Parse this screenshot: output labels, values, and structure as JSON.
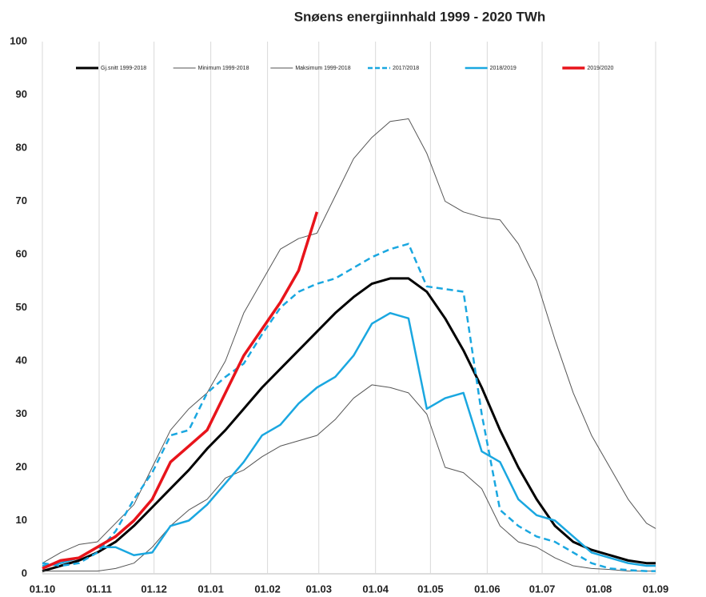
{
  "chart_data": {
    "type": "line",
    "title": "Snøens energiinnhald 1999 - 2020 TWh",
    "x": [
      0,
      10,
      20,
      30,
      40,
      50,
      60,
      70,
      80,
      90,
      100,
      110,
      120,
      130,
      140,
      150,
      160,
      170,
      180,
      190,
      200,
      210,
      220,
      230,
      240,
      250,
      260,
      270,
      280,
      290,
      300,
      310,
      320,
      330,
      335
    ],
    "xlim": [
      0,
      335
    ],
    "xticks": [
      {
        "value": 0,
        "label": "01.10"
      },
      {
        "value": 31,
        "label": "01.11"
      },
      {
        "value": 61,
        "label": "01.12"
      },
      {
        "value": 92,
        "label": "01.01"
      },
      {
        "value": 123,
        "label": "01.02"
      },
      {
        "value": 151,
        "label": "01.03"
      },
      {
        "value": 182,
        "label": "01.04"
      },
      {
        "value": 212,
        "label": "01.05"
      },
      {
        "value": 243,
        "label": "01.06"
      },
      {
        "value": 273,
        "label": "01.07"
      },
      {
        "value": 304,
        "label": "01.08"
      },
      {
        "value": 335,
        "label": "01.09"
      }
    ],
    "ylim": [
      0,
      100
    ],
    "yticks": [
      0,
      10,
      20,
      30,
      40,
      50,
      60,
      70,
      80,
      90,
      100
    ],
    "grid": "x",
    "series": [
      {
        "name": "Gj.snitt 1999-2018",
        "color": "#000000",
        "width": 3,
        "values": [
          0.5,
          1.5,
          2.5,
          4,
          6,
          9,
          12.5,
          16,
          19.5,
          23.5,
          27,
          31,
          35,
          38.5,
          42,
          45.5,
          49,
          52,
          54.5,
          55.5,
          55.5,
          53,
          48,
          42,
          35,
          27,
          20,
          14,
          9,
          6,
          4.5,
          3.5,
          2.5,
          2,
          2
        ]
      },
      {
        "name": "Minimum 1999-2018",
        "color": "#555555",
        "width": 1,
        "values": [
          0.5,
          0.5,
          0.5,
          0.5,
          1,
          2,
          5,
          9,
          12,
          14,
          18,
          19.5,
          22,
          24,
          25,
          26,
          29,
          33,
          35.5,
          35,
          34,
          30,
          20,
          19,
          16,
          9,
          6,
          5,
          3,
          1.5,
          1,
          0.8,
          0.5,
          0.5,
          0.5
        ]
      },
      {
        "name": "Maksimum 1999-2018",
        "color": "#555555",
        "width": 1,
        "values": [
          2,
          4,
          5.5,
          6,
          9.5,
          13,
          20,
          27,
          31,
          34,
          40,
          49,
          55,
          61,
          63,
          64,
          71,
          78,
          82,
          85,
          85.5,
          79,
          70,
          68,
          67,
          66.5,
          62,
          55,
          44,
          34,
          26,
          20,
          14,
          9.5,
          8.5
        ]
      },
      {
        "name": "2017/2018",
        "color": "#1aa7e0",
        "width": 2.5,
        "dashed": true,
        "values": [
          2,
          1.5,
          2,
          4,
          8,
          14,
          19,
          26,
          27,
          34,
          37,
          39.5,
          45,
          50,
          53,
          54.5,
          55.5,
          57.5,
          59.5,
          61,
          62,
          54,
          53.5,
          53,
          30,
          12,
          9,
          7,
          6,
          4,
          2,
          1,
          0.7,
          0.5,
          0.5
        ]
      },
      {
        "name": "2018/2019",
        "color": "#1aa7e0",
        "width": 2.5,
        "values": [
          1.5,
          2,
          3,
          5,
          5,
          3.5,
          4,
          9,
          10,
          13,
          17,
          21,
          26,
          28,
          32,
          35,
          37,
          41,
          47,
          49,
          48,
          31,
          33,
          34,
          23,
          21,
          14,
          11,
          10,
          7,
          4,
          3,
          2,
          1.5,
          1.5
        ]
      },
      {
        "name": "2019/2020",
        "color": "#e8141b",
        "width": 3.5,
        "values": [
          1,
          2.5,
          3,
          5,
          7,
          10,
          14,
          21,
          24,
          27,
          34,
          41,
          46,
          51,
          57,
          68,
          null,
          null,
          null,
          null,
          null,
          null,
          null,
          null,
          null,
          null,
          null,
          null,
          null,
          null,
          null,
          null,
          null,
          null,
          null
        ]
      }
    ]
  }
}
